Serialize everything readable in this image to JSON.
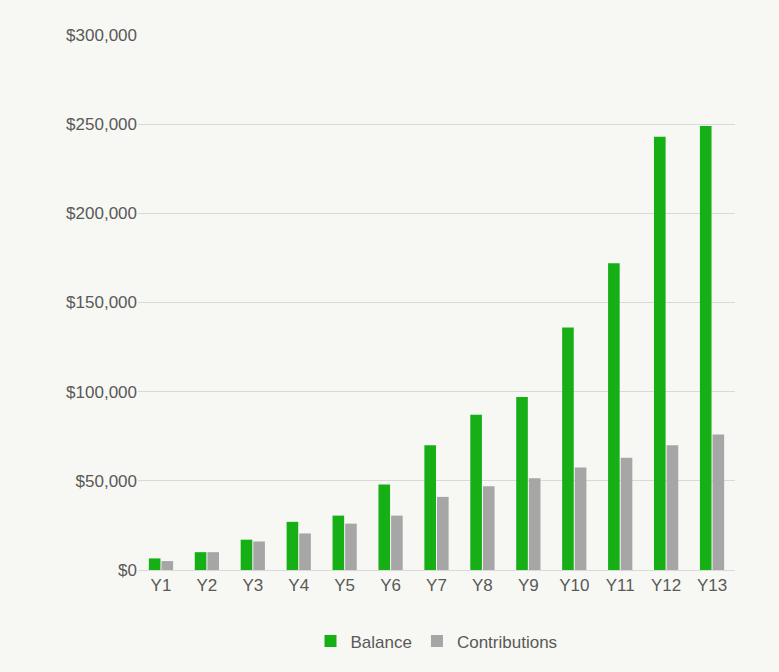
{
  "chart_data": {
    "type": "bar",
    "categories": [
      "Y1",
      "Y2",
      "Y3",
      "Y4",
      "Y5",
      "Y6",
      "Y7",
      "Y8",
      "Y9",
      "Y10",
      "Y11",
      "Y12",
      "Y13"
    ],
    "series": [
      {
        "name": "Balance",
        "color": "#16b016",
        "values": [
          6500,
          10000,
          17000,
          27000,
          30500,
          48000,
          70000,
          87000,
          97000,
          136000,
          172000,
          243000,
          249000
        ]
      },
      {
        "name": "Contributions",
        "color": "#a6a6a6",
        "values": [
          5000,
          10000,
          16000,
          20500,
          26000,
          30500,
          41000,
          47000,
          51500,
          57500,
          63000,
          70000,
          76000
        ]
      }
    ],
    "ylim": [
      0,
      300000
    ],
    "yticks": [
      {
        "value": 0,
        "label": "$0"
      },
      {
        "value": 50000,
        "label": "$50,000"
      },
      {
        "value": 100000,
        "label": "$100,000"
      },
      {
        "value": 150000,
        "label": "$150,000"
      },
      {
        "value": 200000,
        "label": "$200,000"
      },
      {
        "value": 250000,
        "label": "$250,000"
      },
      {
        "value": 300000,
        "label": "$300,000"
      }
    ],
    "grid": true,
    "legend": "bottom"
  }
}
